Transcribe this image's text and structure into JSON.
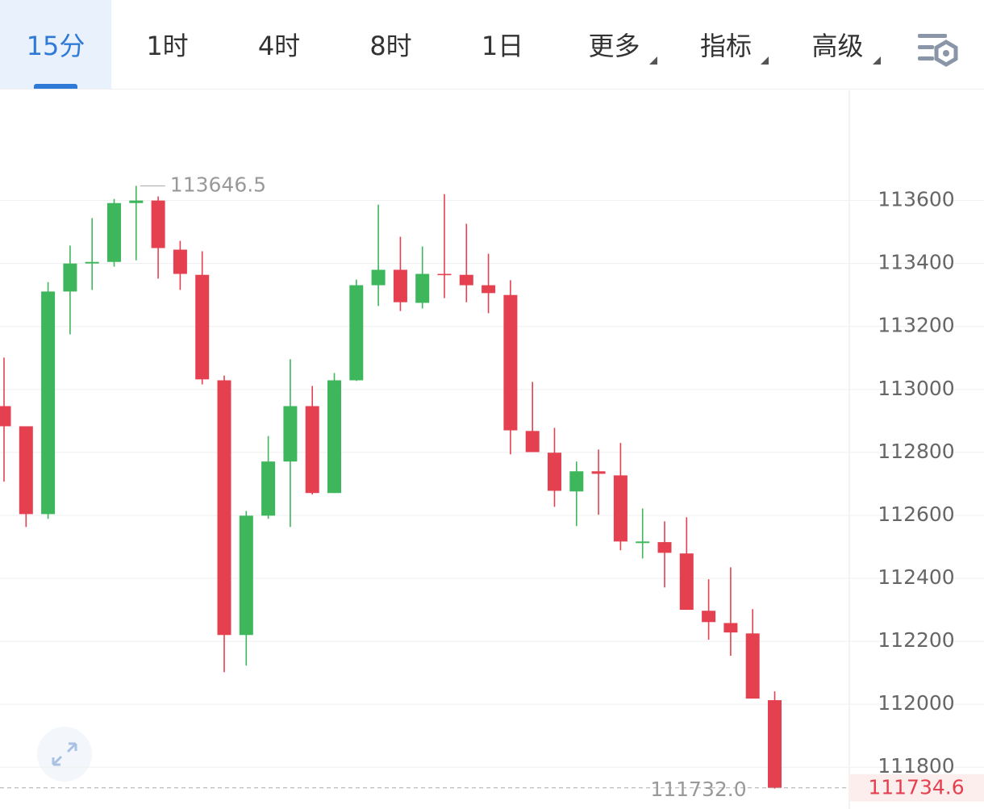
{
  "toolbar": {
    "tabs": [
      {
        "label": "15分",
        "dropdown": false
      },
      {
        "label": "1时",
        "dropdown": false
      },
      {
        "label": "4时",
        "dropdown": false
      },
      {
        "label": "8时",
        "dropdown": false
      },
      {
        "label": "1日",
        "dropdown": false
      },
      {
        "label": "更多",
        "dropdown": true
      },
      {
        "label": "指标",
        "dropdown": true
      },
      {
        "label": "高级",
        "dropdown": true
      }
    ]
  },
  "chart_data": {
    "type": "candlestick",
    "open": [
      112947,
      112883,
      112604,
      113311,
      113400,
      113405,
      113592,
      113600,
      113444,
      113364,
      113029,
      112220,
      112599,
      112771,
      112947,
      112671,
      113029,
      113331,
      113380,
      113275,
      113367,
      113364,
      113331,
      113300,
      112868,
      112799,
      112676,
      112740,
      112727,
      112512,
      112515,
      112479,
      112297,
      112258,
      112225,
      112013
    ],
    "close": [
      112883,
      112604,
      113311,
      113400,
      113405,
      113592,
      113600,
      113449,
      113367,
      113032,
      112220,
      112599,
      112771,
      112947,
      112671,
      113029,
      113331,
      113380,
      113277,
      113367,
      113364,
      113331,
      113306,
      112870,
      112801,
      112678,
      112740,
      112732,
      112517,
      112517,
      112481,
      112300,
      112261,
      112228,
      112018,
      111734.6
    ],
    "high": [
      113101,
      112883,
      113341,
      113457,
      113544,
      113605,
      113646.5,
      113613,
      113472,
      113439,
      113044,
      112614,
      112852,
      113096,
      113011,
      113052,
      113349,
      113587,
      113485,
      113454,
      113620,
      113526,
      113431,
      113347,
      113024,
      112878,
      112771,
      112809,
      112830,
      112622,
      112581,
      112594,
      112397,
      112435,
      112302,
      112041
    ],
    "low": [
      112707,
      112563,
      112589,
      113175,
      113316,
      113390,
      113410,
      113352,
      113316,
      113016,
      112102,
      112123,
      112589,
      112563,
      112666,
      112671,
      113027,
      113265,
      113249,
      113257,
      113290,
      113277,
      113242,
      112794,
      112801,
      112627,
      112566,
      112602,
      112489,
      112463,
      112371,
      112300,
      112205,
      112154,
      112018,
      111732.0
    ],
    "up_color": "#3db65c",
    "down_color": "#e5404f",
    "ylim": [
      111675,
      113950
    ],
    "yticks": [
      111800,
      112000,
      112200,
      112400,
      112600,
      112800,
      113000,
      113200,
      113400,
      113600
    ],
    "grid": true,
    "max_label": 113646.5,
    "min_label": {
      "value": 111732.0,
      "label": "111732.0"
    },
    "last_price": 111734.6
  }
}
